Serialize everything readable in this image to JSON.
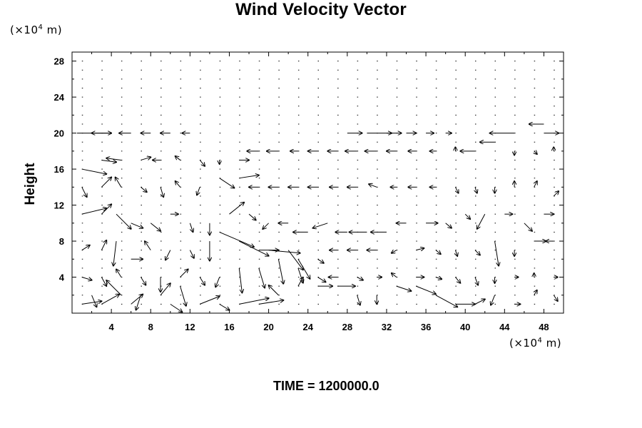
{
  "chart_data": {
    "type": "vector-field",
    "title": "Wind Velocity Vector",
    "ylabel": "Height",
    "xlabel": "",
    "x_unit": {
      "prefix": "(×10",
      "exp": "4",
      "suffix": " m)"
    },
    "y_unit": {
      "prefix": "(×10",
      "exp": "4",
      "suffix": " m)"
    },
    "xlim": [
      0,
      50
    ],
    "ylim": [
      0,
      29
    ],
    "x_ticks": [
      4,
      8,
      12,
      16,
      20,
      24,
      28,
      32,
      36,
      40,
      44,
      48
    ],
    "y_ticks": [
      4,
      8,
      12,
      16,
      20,
      24,
      28
    ],
    "x_minor_step": 2,
    "y_minor_step": 2,
    "grid": false,
    "footer": "TIME = 1200000.0",
    "vectors_note": "grid of velocity arrows sampled every 2 units in x and 1 unit in y; ux/uy given in plot units",
    "vectors": [
      {
        "x": 1,
        "y": 1,
        "ux": 2,
        "uy": 0.3
      },
      {
        "x": 2,
        "y": 2,
        "ux": 0.5,
        "uy": -1.2
      },
      {
        "x": 3,
        "y": 1,
        "ux": 1.8,
        "uy": 1
      },
      {
        "x": 5,
        "y": 2,
        "ux": -1.5,
        "uy": 1.5
      },
      {
        "x": 6,
        "y": 1,
        "ux": 1.2,
        "uy": 1
      },
      {
        "x": 7,
        "y": 2,
        "ux": -0.5,
        "uy": -1.5
      },
      {
        "x": 9,
        "y": 2,
        "ux": 1,
        "uy": 1.2
      },
      {
        "x": 10,
        "y": 1,
        "ux": 1.2,
        "uy": -0.8
      },
      {
        "x": 11,
        "y": 3,
        "ux": 0.6,
        "uy": -2
      },
      {
        "x": 13,
        "y": 1,
        "ux": 2,
        "uy": 0.8
      },
      {
        "x": 15,
        "y": 1,
        "ux": 1,
        "uy": -0.6
      },
      {
        "x": 17,
        "y": 1,
        "ux": 3,
        "uy": 0.6
      },
      {
        "x": 19,
        "y": 1,
        "ux": 2.5,
        "uy": 0.4
      },
      {
        "x": 21,
        "y": 2,
        "ux": -1,
        "uy": 1
      },
      {
        "x": 23,
        "y": 3,
        "ux": 0.5,
        "uy": 0.9
      },
      {
        "x": 25,
        "y": 3,
        "ux": 1.5,
        "uy": 0
      },
      {
        "x": 27,
        "y": 3,
        "ux": 1.8,
        "uy": 0
      },
      {
        "x": 29,
        "y": 2,
        "ux": 0.3,
        "uy": -1
      },
      {
        "x": 31,
        "y": 2,
        "ux": 0,
        "uy": -0.9
      },
      {
        "x": 33,
        "y": 3,
        "ux": 1.5,
        "uy": -0.5
      },
      {
        "x": 35,
        "y": 3,
        "ux": 2,
        "uy": -0.8
      },
      {
        "x": 37,
        "y": 2,
        "ux": 2.2,
        "uy": -1.2
      },
      {
        "x": 39,
        "y": 1,
        "ux": 2,
        "uy": 0
      },
      {
        "x": 41,
        "y": 1,
        "ux": 1,
        "uy": 0.5
      },
      {
        "x": 43,
        "y": 2,
        "ux": -0.4,
        "uy": -1
      },
      {
        "x": 45,
        "y": 1,
        "ux": 0.6,
        "uy": 0
      },
      {
        "x": 47,
        "y": 2,
        "ux": 0.3,
        "uy": 0.5
      },
      {
        "x": 49,
        "y": 2,
        "ux": 0.4,
        "uy": -0.6
      },
      {
        "x": 1,
        "y": 4,
        "ux": 1,
        "uy": -0.3
      },
      {
        "x": 3,
        "y": 4,
        "ux": 0.5,
        "uy": -0.9
      },
      {
        "x": 5,
        "y": 4,
        "ux": -0.5,
        "uy": 0.8
      },
      {
        "x": 7,
        "y": 4,
        "ux": 0.5,
        "uy": -0.8
      },
      {
        "x": 9,
        "y": 4,
        "ux": 0,
        "uy": -1.5
      },
      {
        "x": 11,
        "y": 4,
        "ux": 0.8,
        "uy": 0.8
      },
      {
        "x": 13,
        "y": 4,
        "ux": 0.5,
        "uy": -0.8
      },
      {
        "x": 15,
        "y": 4,
        "ux": -0.4,
        "uy": -1
      },
      {
        "x": 17,
        "y": 5,
        "ux": 0.3,
        "uy": -2.5
      },
      {
        "x": 19,
        "y": 5,
        "ux": 0.6,
        "uy": -2
      },
      {
        "x": 21,
        "y": 6,
        "ux": 0.5,
        "uy": -2.5
      },
      {
        "x": 23,
        "y": 5,
        "ux": 0.5,
        "uy": -1.5
      },
      {
        "x": 25,
        "y": 4,
        "ux": 0.8,
        "uy": -0.5
      },
      {
        "x": 27,
        "y": 4,
        "ux": -0.9,
        "uy": 0
      },
      {
        "x": 29,
        "y": 4,
        "ux": 0.6,
        "uy": -0.3
      },
      {
        "x": 31,
        "y": 4,
        "ux": 0.5,
        "uy": 0
      },
      {
        "x": 33,
        "y": 4,
        "ux": -0.5,
        "uy": 0.4
      },
      {
        "x": 35,
        "y": 4,
        "ux": 0.8,
        "uy": 0
      },
      {
        "x": 37,
        "y": 4,
        "ux": 0.6,
        "uy": -0.2
      },
      {
        "x": 39,
        "y": 4,
        "ux": 0.5,
        "uy": -0.6
      },
      {
        "x": 41,
        "y": 4,
        "ux": 0.3,
        "uy": -0.8
      },
      {
        "x": 43,
        "y": 4,
        "ux": 0,
        "uy": -0.6
      },
      {
        "x": 45,
        "y": 4,
        "ux": 0.4,
        "uy": 0
      },
      {
        "x": 47,
        "y": 4,
        "ux": 0,
        "uy": 0.4
      },
      {
        "x": 49,
        "y": 4,
        "ux": 0.4,
        "uy": 0
      },
      {
        "x": 1,
        "y": 7,
        "ux": 0.8,
        "uy": 0.5
      },
      {
        "x": 3,
        "y": 7,
        "ux": 0.5,
        "uy": 1
      },
      {
        "x": 4.5,
        "y": 8,
        "ux": -0.3,
        "uy": -2.5
      },
      {
        "x": 6,
        "y": 6,
        "ux": 1.2,
        "uy": 0
      },
      {
        "x": 8,
        "y": 7,
        "ux": -0.6,
        "uy": 0.9
      },
      {
        "x": 10,
        "y": 7,
        "ux": -0.5,
        "uy": -1
      },
      {
        "x": 12,
        "y": 7,
        "ux": 0.4,
        "uy": -0.8
      },
      {
        "x": 14,
        "y": 8,
        "ux": 0,
        "uy": -2
      },
      {
        "x": 15,
        "y": 9,
        "ux": 3.5,
        "uy": -1.5
      },
      {
        "x": 17,
        "y": 8,
        "ux": 3,
        "uy": -1.5
      },
      {
        "x": 19,
        "y": 7,
        "ux": 2,
        "uy": 0
      },
      {
        "x": 20,
        "y": 7,
        "ux": 3.2,
        "uy": -0.3
      },
      {
        "x": 22,
        "y": 7,
        "ux": 1.5,
        "uy": -2
      },
      {
        "x": 23,
        "y": 6,
        "ux": 1.2,
        "uy": -2
      },
      {
        "x": 25,
        "y": 6,
        "ux": 0.6,
        "uy": -0.4
      },
      {
        "x": 27,
        "y": 7,
        "ux": -0.8,
        "uy": 0
      },
      {
        "x": 29,
        "y": 7,
        "ux": -1,
        "uy": 0
      },
      {
        "x": 31,
        "y": 7,
        "ux": -1,
        "uy": 0
      },
      {
        "x": 33,
        "y": 7,
        "ux": -0.5,
        "uy": -0.3
      },
      {
        "x": 35,
        "y": 7,
        "ux": 0.8,
        "uy": 0.2
      },
      {
        "x": 37,
        "y": 7,
        "ux": 0.5,
        "uy": -0.4
      },
      {
        "x": 39,
        "y": 7,
        "ux": 0.2,
        "uy": -0.6
      },
      {
        "x": 41,
        "y": 7,
        "ux": 0.5,
        "uy": -0.5
      },
      {
        "x": 43,
        "y": 8,
        "ux": 0.4,
        "uy": -2.5
      },
      {
        "x": 45,
        "y": 7,
        "ux": 0,
        "uy": -0.6
      },
      {
        "x": 47,
        "y": 8,
        "ux": 1.2,
        "uy": 0
      },
      {
        "x": 49,
        "y": 8,
        "ux": -0.8,
        "uy": 0
      },
      {
        "x": 1,
        "y": 11,
        "ux": 2.5,
        "uy": 0.6
      },
      {
        "x": 3,
        "y": 11,
        "ux": 1,
        "uy": 1
      },
      {
        "x": 4.5,
        "y": 11,
        "ux": 1.5,
        "uy": -1.5
      },
      {
        "x": 6,
        "y": 10,
        "ux": 1.2,
        "uy": -0.5
      },
      {
        "x": 8,
        "y": 10,
        "ux": 1,
        "uy": -0.8
      },
      {
        "x": 10,
        "y": 11,
        "ux": 0.8,
        "uy": 0
      },
      {
        "x": 12,
        "y": 10,
        "ux": 0.3,
        "uy": -0.9
      },
      {
        "x": 14,
        "y": 10,
        "ux": 0,
        "uy": -1.2
      },
      {
        "x": 16,
        "y": 11,
        "ux": 1.5,
        "uy": 1.2
      },
      {
        "x": 18,
        "y": 11,
        "ux": 0.7,
        "uy": -0.6
      },
      {
        "x": 20,
        "y": 10,
        "ux": -0.6,
        "uy": -0.6
      },
      {
        "x": 22,
        "y": 10,
        "ux": -1,
        "uy": 0
      },
      {
        "x": 24,
        "y": 9,
        "ux": -1.5,
        "uy": 0
      },
      {
        "x": 26,
        "y": 10,
        "ux": -1.5,
        "uy": -0.5
      },
      {
        "x": 28,
        "y": 9,
        "ux": -1.2,
        "uy": 0
      },
      {
        "x": 30,
        "y": 9,
        "ux": -1.8,
        "uy": 0
      },
      {
        "x": 32,
        "y": 9,
        "ux": -1.6,
        "uy": 0
      },
      {
        "x": 34,
        "y": 10,
        "ux": -1,
        "uy": 0
      },
      {
        "x": 36,
        "y": 10,
        "ux": 1.2,
        "uy": 0
      },
      {
        "x": 38,
        "y": 10,
        "ux": 0.6,
        "uy": -0.5
      },
      {
        "x": 40,
        "y": 11,
        "ux": 0.5,
        "uy": -0.5
      },
      {
        "x": 42,
        "y": 11,
        "ux": -0.8,
        "uy": -1.5
      },
      {
        "x": 44,
        "y": 11,
        "ux": 0.8,
        "uy": 0
      },
      {
        "x": 46,
        "y": 10,
        "ux": 0.8,
        "uy": -0.8
      },
      {
        "x": 48,
        "y": 11,
        "ux": 1,
        "uy": 0
      },
      {
        "x": 1,
        "y": 14,
        "ux": 0.5,
        "uy": -1
      },
      {
        "x": 3,
        "y": 14,
        "ux": 1,
        "uy": 1
      },
      {
        "x": 5,
        "y": 14,
        "ux": -0.6,
        "uy": 1
      },
      {
        "x": 7,
        "y": 14,
        "ux": 0.6,
        "uy": -0.5
      },
      {
        "x": 9,
        "y": 14,
        "ux": 0.3,
        "uy": -1
      },
      {
        "x": 11,
        "y": 14,
        "ux": -0.5,
        "uy": 0.6
      },
      {
        "x": 13,
        "y": 14,
        "ux": -0.3,
        "uy": -0.8
      },
      {
        "x": 15,
        "y": 15,
        "ux": 1.5,
        "uy": -1
      },
      {
        "x": 17,
        "y": 15,
        "ux": 2,
        "uy": 0.3
      },
      {
        "x": 19,
        "y": 14,
        "ux": -1,
        "uy": 0
      },
      {
        "x": 21,
        "y": 14,
        "ux": -1,
        "uy": 0
      },
      {
        "x": 23,
        "y": 14,
        "ux": -1,
        "uy": 0
      },
      {
        "x": 25,
        "y": 14,
        "ux": -1,
        "uy": 0
      },
      {
        "x": 27,
        "y": 14,
        "ux": -0.8,
        "uy": 0
      },
      {
        "x": 29,
        "y": 14,
        "ux": -1,
        "uy": 0
      },
      {
        "x": 31,
        "y": 14,
        "ux": -0.8,
        "uy": 0.3
      },
      {
        "x": 33,
        "y": 14,
        "ux": -0.6,
        "uy": 0
      },
      {
        "x": 35,
        "y": 14,
        "ux": -0.8,
        "uy": 0
      },
      {
        "x": 37,
        "y": 14,
        "ux": -0.6,
        "uy": 0
      },
      {
        "x": 39,
        "y": 14,
        "ux": 0.3,
        "uy": -0.6
      },
      {
        "x": 41,
        "y": 14,
        "ux": 0.2,
        "uy": -0.6
      },
      {
        "x": 43,
        "y": 14,
        "ux": 0,
        "uy": -0.6
      },
      {
        "x": 45,
        "y": 14,
        "ux": 0,
        "uy": 0.6
      },
      {
        "x": 47,
        "y": 14,
        "ux": 0.3,
        "uy": 0.6
      },
      {
        "x": 49,
        "y": 13,
        "ux": 0.5,
        "uy": 0.5
      },
      {
        "x": 1,
        "y": 16,
        "ux": 2.5,
        "uy": -0.5
      },
      {
        "x": 3,
        "y": 17,
        "ux": 1.5,
        "uy": -0.2
      },
      {
        "x": 5,
        "y": 17,
        "ux": -1.5,
        "uy": 0.2
      },
      {
        "x": 7,
        "y": 17,
        "ux": 1,
        "uy": 0.3
      },
      {
        "x": 9,
        "y": 17,
        "ux": -0.8,
        "uy": 0
      },
      {
        "x": 11,
        "y": 17,
        "ux": -0.5,
        "uy": 0.4
      },
      {
        "x": 13,
        "y": 17,
        "ux": 0.5,
        "uy": -0.6
      },
      {
        "x": 15,
        "y": 17,
        "ux": 0,
        "uy": -0.4
      },
      {
        "x": 17,
        "y": 17,
        "ux": 1,
        "uy": 0
      },
      {
        "x": 19,
        "y": 18,
        "ux": -1.2,
        "uy": 0
      },
      {
        "x": 21,
        "y": 18,
        "ux": -1.2,
        "uy": 0
      },
      {
        "x": 23,
        "y": 18,
        "ux": -0.8,
        "uy": 0
      },
      {
        "x": 25,
        "y": 18,
        "ux": -1,
        "uy": 0
      },
      {
        "x": 27,
        "y": 18,
        "ux": -1,
        "uy": 0
      },
      {
        "x": 29,
        "y": 18,
        "ux": -1.2,
        "uy": 0
      },
      {
        "x": 31,
        "y": 18,
        "ux": -1.2,
        "uy": 0
      },
      {
        "x": 33,
        "y": 18,
        "ux": -1,
        "uy": 0
      },
      {
        "x": 35,
        "y": 18,
        "ux": -0.8,
        "uy": 0
      },
      {
        "x": 37,
        "y": 18,
        "ux": -0.6,
        "uy": 0
      },
      {
        "x": 39,
        "y": 18,
        "ux": 0,
        "uy": 0.4
      },
      {
        "x": 41,
        "y": 18,
        "ux": -1.5,
        "uy": 0
      },
      {
        "x": 43,
        "y": 19,
        "ux": -1.5,
        "uy": 0
      },
      {
        "x": 45,
        "y": 18,
        "ux": 0,
        "uy": -0.4
      },
      {
        "x": 47,
        "y": 18,
        "ux": 0.3,
        "uy": -0.3
      },
      {
        "x": 49,
        "y": 18,
        "ux": 0,
        "uy": 0.4
      },
      {
        "x": 0.5,
        "y": 20,
        "ux": 3.5,
        "uy": 0
      },
      {
        "x": 4,
        "y": 20,
        "ux": -2,
        "uy": 0
      },
      {
        "x": 6,
        "y": 20,
        "ux": -1.2,
        "uy": 0
      },
      {
        "x": 8,
        "y": 20,
        "ux": -1,
        "uy": 0
      },
      {
        "x": 10,
        "y": 20,
        "ux": -1,
        "uy": 0
      },
      {
        "x": 12,
        "y": 20,
        "ux": -0.8,
        "uy": 0
      },
      {
        "x": 28,
        "y": 20,
        "ux": 1.5,
        "uy": 0
      },
      {
        "x": 30,
        "y": 20,
        "ux": 2.5,
        "uy": 0
      },
      {
        "x": 32,
        "y": 20,
        "ux": 1.5,
        "uy": 0
      },
      {
        "x": 34,
        "y": 20,
        "ux": 1,
        "uy": 0
      },
      {
        "x": 36,
        "y": 20,
        "ux": 0.8,
        "uy": 0
      },
      {
        "x": 38,
        "y": 20,
        "ux": 0.6,
        "uy": 0
      },
      {
        "x": 45,
        "y": 20,
        "ux": -2.5,
        "uy": 0
      },
      {
        "x": 48,
        "y": 20,
        "ux": 1.5,
        "uy": 0
      },
      {
        "x": 48,
        "y": 21,
        "ux": -1.5,
        "uy": 0
      }
    ]
  }
}
